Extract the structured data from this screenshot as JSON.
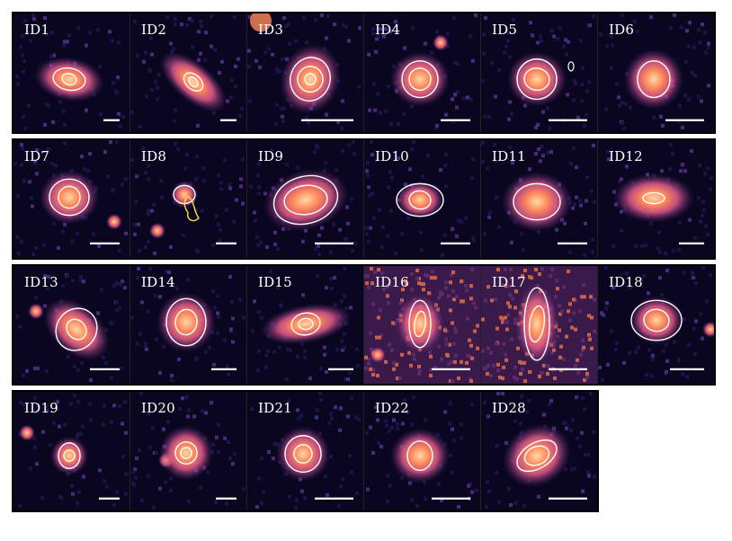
{
  "rows": [
    [
      "ID1",
      "ID2",
      "ID3",
      "ID4",
      "ID5",
      "ID6"
    ],
    [
      "ID7",
      "ID8",
      "ID9",
      "ID10",
      "ID11",
      "ID12"
    ],
    [
      "ID13",
      "ID14",
      "ID15",
      "ID16",
      "ID17",
      "ID18"
    ],
    [
      "ID19",
      "ID20",
      "ID21",
      "ID22",
      "ID28"
    ]
  ],
  "colors": {
    "background": "#0a0620",
    "contour": "#ffffff",
    "contour_alt": "#f2e13a",
    "core": "#ffd9a8",
    "glow": "#e05a8a",
    "halo": "#5a2a7a",
    "scalebar": "#ffffff"
  }
}
